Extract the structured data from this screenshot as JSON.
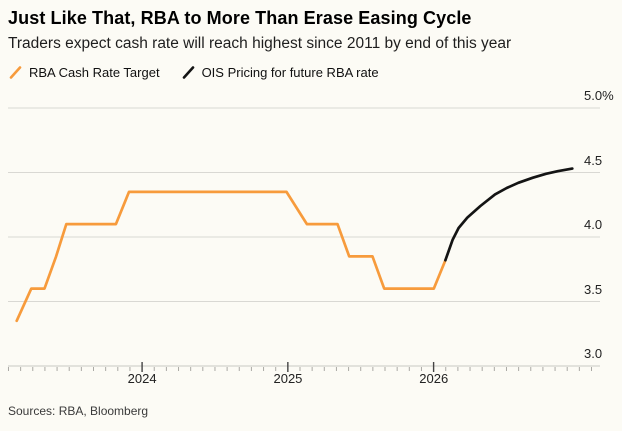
{
  "header": {
    "title": "Just Like That, RBA to More Than Erase Easing Cycle",
    "subtitle": "Traders expect cash rate will reach highest since 2011 by end of this year"
  },
  "legend": [
    {
      "label": "RBA Cash Rate Target",
      "color": "#f79b3c",
      "icon": "slash-icon"
    },
    {
      "label": "OIS Pricing for future RBA rate",
      "color": "#141414",
      "icon": "slash-icon"
    }
  ],
  "source": "Sources: RBA, Bloomberg",
  "colors": {
    "background": "#fcfbf5",
    "gridline": "#d9d8d3",
    "axis_line": "#c9c8c3",
    "minor_tick": "#aaa9a4",
    "major_tick": "#444444",
    "rba_line": "#f79b3c",
    "ois_line": "#141414"
  },
  "chart_data": {
    "type": "line",
    "title": "Just Like That, RBA to More Than Erase Easing Cycle",
    "subtitle": "Traders expect cash rate will reach highest since 2011 by end of this year",
    "xlabel": "",
    "ylabel": "",
    "unit": "%",
    "grid": true,
    "legend_position": "top-left",
    "xlim": [
      2023.08,
      2027.14
    ],
    "ylim": [
      3.0,
      5.0
    ],
    "x_axis": {
      "major_ticks": [
        2024,
        2025,
        2026
      ],
      "labels": [
        "2024",
        "2025",
        "2026"
      ],
      "minor_tick_interval_years": 0.0833
    },
    "y_axis": {
      "ticks": [
        5.0,
        4.5,
        4.0,
        3.5,
        3.0
      ],
      "labels": [
        "5.0%",
        "4.5",
        "4.0",
        "3.5",
        "3.0"
      ]
    },
    "series": [
      {
        "name": "RBA Cash Rate Target",
        "color": "#f79b3c",
        "points": [
          [
            2023.14,
            3.35
          ],
          [
            2023.24,
            3.6
          ],
          [
            2023.33,
            3.6
          ],
          [
            2023.41,
            3.85
          ],
          [
            2023.48,
            4.1
          ],
          [
            2023.82,
            4.1
          ],
          [
            2023.91,
            4.35
          ],
          [
            2024.99,
            4.35
          ],
          [
            2025.13,
            4.1
          ],
          [
            2025.34,
            4.1
          ],
          [
            2025.42,
            3.85
          ],
          [
            2025.58,
            3.85
          ],
          [
            2025.66,
            3.6
          ],
          [
            2026.0,
            3.6
          ],
          [
            2026.08,
            3.82
          ]
        ]
      },
      {
        "name": "OIS Pricing for future RBA rate",
        "color": "#141414",
        "points": [
          [
            2026.08,
            3.82
          ],
          [
            2026.13,
            3.98
          ],
          [
            2026.17,
            4.07
          ],
          [
            2026.23,
            4.15
          ],
          [
            2026.32,
            4.24
          ],
          [
            2026.42,
            4.33
          ],
          [
            2026.5,
            4.38
          ],
          [
            2026.58,
            4.42
          ],
          [
            2026.68,
            4.46
          ],
          [
            2026.77,
            4.49
          ],
          [
            2026.85,
            4.51
          ],
          [
            2026.95,
            4.53
          ]
        ]
      }
    ]
  }
}
